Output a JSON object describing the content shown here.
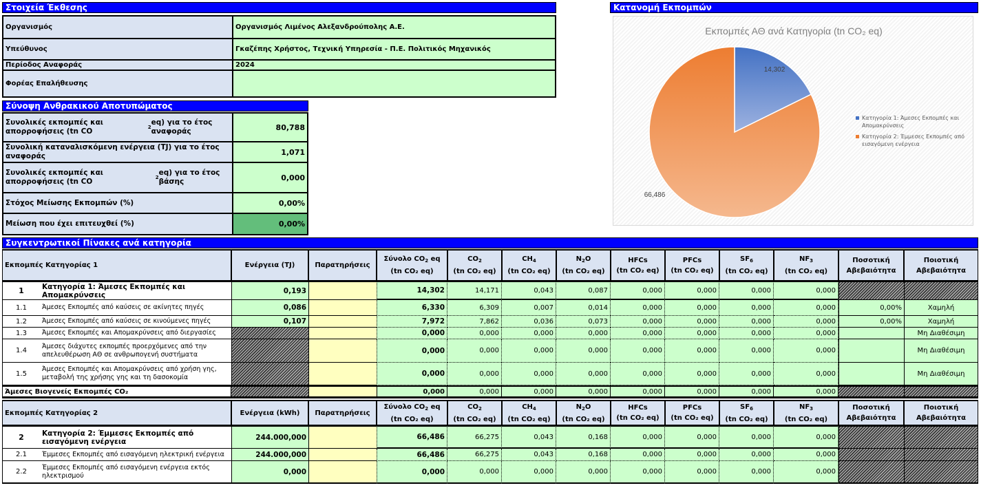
{
  "report": {
    "title": "Στοιχεία Έκθεσης",
    "rows": [
      {
        "label": "Οργανισμός",
        "value": "Οργανισμός Λιμένος Αλεξανδρούπολης Α.Ε."
      },
      {
        "label": "Υπεύθυνος",
        "value": "Γκαζέπης Χρήστος, Τεχνική Υπηρεσία - Π.Ε. Πολιτικός Μηχανικός"
      },
      {
        "label": "Περίοδος Αναφοράς",
        "value": "2024"
      },
      {
        "label": "Φορέας Επαλήθευσης",
        "value": ""
      }
    ]
  },
  "summary": {
    "title": "Σύνοψη Ανθρακικού Αποτυπώματος",
    "rows": [
      {
        "label_a": "Συνολικές εκπομπές και απορροφήσεις (tn CO",
        "sub": "2",
        "label_b": " eq) για το έτος αναφοράς",
        "value": "80,788"
      },
      {
        "label_a": "Συνολική καταναλισκόμενη ενέργεια (TJ) για το έτος αναφοράς",
        "sub": "",
        "label_b": "",
        "value": "1,071"
      },
      {
        "label_a": "Συνολικές εκπομπές και απορροφήσεις (tn CO",
        "sub": "2",
        "label_b": " eq) για το έτος βάσης",
        "value": "0,000"
      },
      {
        "label_a": "Στόχος Μείωσης Εκπομπών (%)",
        "sub": "",
        "label_b": "",
        "value": "0,00%"
      },
      {
        "label_a": "Μείωση που έχει επιτευχθεί (%)",
        "sub": "",
        "label_b": "",
        "value": "0,00%"
      }
    ]
  },
  "distribution": {
    "title": "Κατανομή Εκπομπών"
  },
  "chart_data": {
    "type": "pie",
    "title": "Εκπομπές ΑΘ ανά Κατηγορία (tn CO₂ eq)",
    "categories": [
      "Κατηγορία 1: Άμεσες Εκπομπές και Απομακρύνσεις",
      "Κατηγορία 2: Έμμεσες Εκπομπές από εισαγόμενη ενέργεια"
    ],
    "values": [
      14.302,
      66.486
    ],
    "data_labels": [
      "14,302",
      "66,486"
    ],
    "colors": [
      "#4472c4",
      "#ed7d31"
    ],
    "legend_position": "right"
  },
  "tables": {
    "title": "Συγκεντρωτικοί Πίνακες ανά κατηγορία",
    "gas_headers": [
      {
        "a": "Σύνολο CO",
        "s": "2",
        "b": " eq",
        "unit": "(tn CO₂ eq)"
      },
      {
        "a": "CO",
        "s": "2",
        "b": "",
        "unit": "(tn CO₂ eq)"
      },
      {
        "a": "CH",
        "s": "4",
        "b": "",
        "unit": "(tn CO₂ eq)"
      },
      {
        "a": "N",
        "s": "2",
        "b": "O",
        "unit": "(tn CO₂ eq)"
      },
      {
        "a": "HFCs",
        "s": "",
        "b": "",
        "unit": "(tn CO₂ eq)"
      },
      {
        "a": "PFCs",
        "s": "",
        "b": "",
        "unit": "(tn CO₂ eq)"
      },
      {
        "a": "SF",
        "s": "6",
        "b": "",
        "unit": "(tn CO₂ eq)"
      },
      {
        "a": "NF",
        "s": "3",
        "b": "",
        "unit": "(tn CO₂ eq)"
      }
    ],
    "notes_header": "Παρατηρήσεις",
    "quant_header": "Ποσοτική Αβεβαιότητα",
    "qual_header": "Ποιοτική Αβεβαιότητα",
    "cat1": {
      "header": "Εκπομπές Κατηγορίας 1",
      "energy_header": "Ενέργεια (TJ)",
      "rows": [
        {
          "num": "1",
          "desc": "Κατηγορία 1: Άμεσες Εκπομπές και Απομακρύνσεις",
          "energy": "0,193",
          "total": "14,302",
          "gases": [
            "14,171",
            "0,043",
            "0,087",
            "0,000",
            "0,000",
            "0,000",
            "0,000"
          ],
          "quant": "",
          "qual": ""
        },
        {
          "num": "1.1",
          "desc": "Άμεσες Εκπομπές από καύσεις σε ακίνητες πηγές",
          "energy": "0,086",
          "total": "6,330",
          "gases": [
            "6,309",
            "0,007",
            "0,014",
            "0,000",
            "0,000",
            "0,000",
            "0,000"
          ],
          "quant": "0,00%",
          "qual": "Χαμηλή"
        },
        {
          "num": "1.2",
          "desc": "Άμεσες Εκπομπές από καύσεις σε κινούμενες πηγές",
          "energy": "0,107",
          "total": "7,972",
          "gases": [
            "7,862",
            "0,036",
            "0,073",
            "0,000",
            "0,000",
            "0,000",
            "0,000"
          ],
          "quant": "0,00%",
          "qual": "Χαμηλή"
        },
        {
          "num": "1.3",
          "desc": "Άμεσες Εκπομπές και Απομακρύνσεις από διεργασίες",
          "energy": "",
          "total": "0,000",
          "gases": [
            "0,000",
            "0,000",
            "0,000",
            "0,000",
            "0,000",
            "0,000",
            "0,000"
          ],
          "quant": "",
          "qual": "Μη Διαθέσιμη"
        },
        {
          "num": "1.4",
          "desc": "Άμεσες διάχυτες εκπομπές προερχόμενες από την απελευθέρωση ΑΘ σε ανθρωπογενή συστήματα",
          "energy": "",
          "total": "0,000",
          "gases": [
            "0,000",
            "0,000",
            "0,000",
            "0,000",
            "0,000",
            "0,000",
            "0,000"
          ],
          "quant": "",
          "qual": "Μη Διαθέσιμη"
        },
        {
          "num": "1.5",
          "desc": "Άμεσες Εκπομπές και Απομακρύνσεις από χρήση γης, μεταβολή της χρήσης γης και τη δασοκομία",
          "energy": "",
          "total": "0,000",
          "gases": [
            "0,000",
            "0,000",
            "0,000",
            "0,000",
            "0,000",
            "0,000",
            "0,000"
          ],
          "quant": "",
          "qual": "Μη Διαθέσιμη"
        }
      ],
      "biogenic": {
        "label": "Άμεσες Βιογενείς Εκπομπές CO₂",
        "total": "0,000",
        "gases": [
          "0,000",
          "0,000",
          "0,000",
          "0,000",
          "0,000",
          "0,000",
          "0,000"
        ]
      }
    },
    "cat2": {
      "header": "Εκπομπές Κατηγορίας 2",
      "energy_header": "Ενέργεια (kWh)",
      "rows": [
        {
          "num": "2",
          "desc": "Κατηγορία 2: Έμμεσες Εκπομπές από εισαγόμενη ενέργεια",
          "energy": "244.000,000",
          "total": "66,486",
          "gases": [
            "66,275",
            "0,043",
            "0,168",
            "0,000",
            "0,000",
            "0,000",
            "0,000"
          ]
        },
        {
          "num": "2.1",
          "desc": "Έμμεσες Εκπομπές από εισαγόμενη ηλεκτρική ενέργεια",
          "energy": "244.000,000",
          "total": "66,486",
          "gases": [
            "66,275",
            "0,043",
            "0,168",
            "0,000",
            "0,000",
            "0,000",
            "0,000"
          ]
        },
        {
          "num": "2.2",
          "desc": "Έμμεσες Εκπομπές από εισαγόμενη ενέργεια εκτός ηλεκτρισμού",
          "energy": "0,000",
          "total": "0,000",
          "gases": [
            "0,000",
            "0,000",
            "0,000",
            "0,000",
            "0,000",
            "0,000",
            "0,000"
          ]
        }
      ]
    }
  }
}
